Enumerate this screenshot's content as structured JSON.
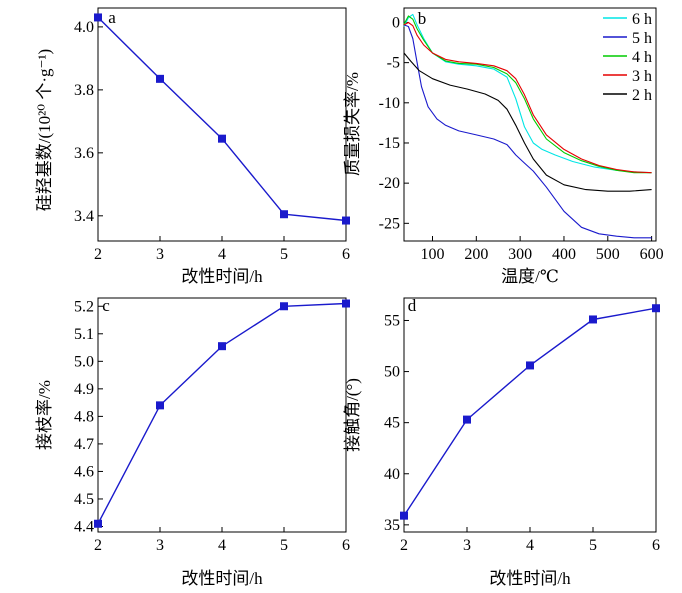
{
  "chart_data": [
    {
      "panel_label": "a",
      "type": "line",
      "xlabel": "改性时间/h",
      "ylabel": "硅羟基数/(10²⁰ 个·g⁻¹)",
      "x": [
        2,
        3,
        4,
        5,
        6
      ],
      "series": [
        {
          "values": [
            4.03,
            3.835,
            3.645,
            3.405,
            3.385
          ]
        }
      ],
      "xlim": [
        2,
        6
      ],
      "ylim": [
        3.32,
        4.06
      ],
      "xticks": [
        "2",
        "3",
        "4",
        "5",
        "6"
      ],
      "yticks": [
        "3.4",
        "3.6",
        "3.8",
        "4.0"
      ],
      "color": "#1a1acc",
      "marker": "square",
      "grid": false
    },
    {
      "panel_label": "b",
      "type": "line",
      "xlabel": "温度/℃",
      "ylabel": "质量损失率/%",
      "xlim": [
        35,
        610
      ],
      "ylim": [
        -27.2,
        1.8
      ],
      "xticks": [
        "100",
        "200",
        "300",
        "400",
        "500",
        "600"
      ],
      "yticks": [
        "0",
        "-5",
        "-10",
        "-15",
        "-20",
        "-25"
      ],
      "legend_position": "top-right",
      "grid": false,
      "series": [
        {
          "name": "6 h",
          "color": "#00e5e5",
          "x": [
            35,
            45,
            55,
            65,
            80,
            100,
            130,
            160,
            200,
            240,
            270,
            290,
            310,
            330,
            350,
            380,
            420,
            470,
            520,
            560,
            600
          ],
          "values": [
            -0.5,
            0.6,
            1.0,
            -0.3,
            -2.0,
            -3.8,
            -4.9,
            -5.2,
            -5.4,
            -5.8,
            -6.8,
            -9.5,
            -13.0,
            -15.0,
            -15.8,
            -16.5,
            -17.3,
            -18.0,
            -18.4,
            -18.6,
            -18.7
          ]
        },
        {
          "name": "5 h",
          "color": "#1a1acc",
          "x": [
            35,
            45,
            55,
            65,
            75,
            90,
            110,
            130,
            160,
            200,
            240,
            270,
            290,
            310,
            330,
            360,
            400,
            440,
            480,
            520,
            560,
            600
          ],
          "values": [
            -0.3,
            -0.5,
            -2.0,
            -5.0,
            -8.0,
            -10.5,
            -12.0,
            -12.8,
            -13.5,
            -14.0,
            -14.5,
            -15.2,
            -16.5,
            -17.5,
            -18.5,
            -20.5,
            -23.5,
            -25.5,
            -26.3,
            -26.6,
            -26.8,
            -26.8
          ]
        },
        {
          "name": "4 h",
          "color": "#00cc00",
          "x": [
            35,
            45,
            55,
            65,
            80,
            100,
            130,
            160,
            200,
            240,
            270,
            290,
            310,
            330,
            360,
            400,
            440,
            480,
            520,
            560,
            600
          ],
          "values": [
            -0.2,
            0.8,
            0.4,
            -0.8,
            -2.2,
            -3.8,
            -4.8,
            -5.1,
            -5.2,
            -5.6,
            -6.4,
            -7.5,
            -9.5,
            -12.0,
            -14.5,
            -16.2,
            -17.2,
            -17.9,
            -18.4,
            -18.7,
            -18.7
          ]
        },
        {
          "name": "3 h",
          "color": "#e50000",
          "x": [
            35,
            45,
            55,
            65,
            80,
            100,
            130,
            160,
            200,
            240,
            270,
            290,
            310,
            330,
            360,
            400,
            440,
            480,
            520,
            560,
            600
          ],
          "values": [
            -0.3,
            0.0,
            -0.4,
            -1.6,
            -2.8,
            -3.8,
            -4.6,
            -4.9,
            -5.1,
            -5.4,
            -6.0,
            -7.0,
            -9.0,
            -11.5,
            -14.0,
            -15.8,
            -17.0,
            -17.8,
            -18.3,
            -18.6,
            -18.7
          ]
        },
        {
          "name": "2 h",
          "color": "#000000",
          "x": [
            35,
            50,
            70,
            100,
            140,
            180,
            220,
            250,
            270,
            290,
            310,
            330,
            360,
            400,
            450,
            500,
            550,
            600
          ],
          "values": [
            -3.8,
            -4.8,
            -6.0,
            -7.0,
            -7.8,
            -8.3,
            -8.9,
            -9.7,
            -10.8,
            -12.8,
            -15.0,
            -17.0,
            -19.0,
            -20.2,
            -20.8,
            -21.0,
            -21.0,
            -20.8
          ]
        }
      ]
    },
    {
      "panel_label": "c",
      "type": "line",
      "xlabel": "改性时间/h",
      "ylabel": "接枝率/%",
      "x": [
        2,
        3,
        4,
        5,
        6
      ],
      "series": [
        {
          "values": [
            4.41,
            4.84,
            5.055,
            5.2,
            5.21
          ]
        }
      ],
      "xlim": [
        2,
        6
      ],
      "ylim": [
        4.38,
        5.23
      ],
      "xticks": [
        "2",
        "3",
        "4",
        "5",
        "6"
      ],
      "yticks": [
        "4.4",
        "4.5",
        "4.6",
        "4.7",
        "4.8",
        "4.9",
        "5.0",
        "5.1",
        "5.2"
      ],
      "color": "#1a1acc",
      "marker": "square",
      "grid": false
    },
    {
      "panel_label": "d",
      "type": "line",
      "xlabel": "改性时间/h",
      "ylabel": "接触角/(°)",
      "x": [
        2,
        3,
        4,
        5,
        6
      ],
      "series": [
        {
          "values": [
            35.9,
            45.3,
            50.6,
            55.1,
            56.2
          ]
        }
      ],
      "xlim": [
        2,
        6
      ],
      "ylim": [
        34.3,
        57.2
      ],
      "xticks": [
        "2",
        "3",
        "4",
        "5",
        "6"
      ],
      "yticks": [
        "35",
        "40",
        "45",
        "50",
        "55"
      ],
      "color": "#1a1acc",
      "marker": "square",
      "grid": false
    }
  ]
}
